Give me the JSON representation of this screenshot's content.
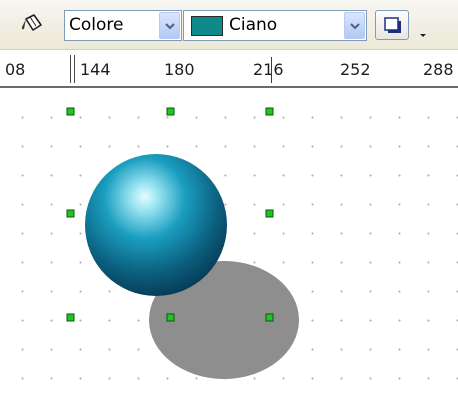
{
  "toolbar": {
    "fill_icon": "paint-bucket-icon",
    "area_style_value": "Colore",
    "fill_color_value": "Ciano",
    "fill_color_swatch": "#0e8a8a",
    "shadow_icon": "shadow-icon",
    "overflow_icon": "chevron-down-icon"
  },
  "ruler": {
    "labels": [
      "08",
      "144",
      "180",
      "216",
      "252",
      "288"
    ]
  },
  "canvas": {
    "objects": [
      {
        "type": "sphere",
        "color": "#0f7fa0",
        "highlight": "#e6fbff",
        "selected": true
      },
      {
        "type": "shadow-ellipse",
        "color": "#8e8e8e"
      }
    ],
    "handle_color": "#22c322"
  }
}
